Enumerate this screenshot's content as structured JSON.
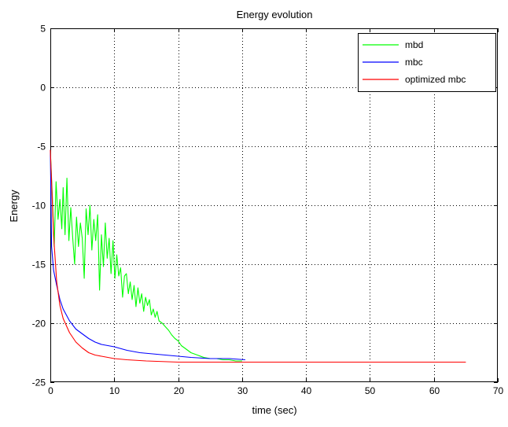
{
  "chart_data": {
    "type": "line",
    "title": "Energy evolution",
    "xlabel": "time (sec)",
    "ylabel": "Energy",
    "xlim": [
      0,
      70
    ],
    "ylim": [
      -25,
      5
    ],
    "x_ticks": [
      0,
      10,
      20,
      30,
      40,
      50,
      60,
      70
    ],
    "y_ticks": [
      5,
      0,
      -5,
      -10,
      -15,
      -20,
      -25
    ],
    "grid": true,
    "legend_position": "top-right",
    "series": [
      {
        "name": "mbd",
        "color": "#00ff00",
        "points": [
          [
            0,
            -5.3
          ],
          [
            0.3,
            -9.0
          ],
          [
            0.6,
            -13.5
          ],
          [
            0.9,
            -8.0
          ],
          [
            1.2,
            -11.2
          ],
          [
            1.5,
            -9.5
          ],
          [
            1.8,
            -12.0
          ],
          [
            2.0,
            -8.5
          ],
          [
            2.3,
            -12.5
          ],
          [
            2.6,
            -7.7
          ],
          [
            2.9,
            -13.0
          ],
          [
            3.2,
            -10.2
          ],
          [
            3.5,
            -12.8
          ],
          [
            3.8,
            -15.0
          ],
          [
            4.1,
            -11.0
          ],
          [
            4.4,
            -13.5
          ],
          [
            4.7,
            -11.5
          ],
          [
            5.0,
            -12.8
          ],
          [
            5.3,
            -16.2
          ],
          [
            5.6,
            -10.3
          ],
          [
            5.9,
            -12.5
          ],
          [
            6.2,
            -10.0
          ],
          [
            6.5,
            -13.8
          ],
          [
            6.8,
            -11.2
          ],
          [
            7.1,
            -13.0
          ],
          [
            7.4,
            -10.8
          ],
          [
            7.7,
            -17.2
          ],
          [
            8.0,
            -12.5
          ],
          [
            8.3,
            -15.2
          ],
          [
            8.6,
            -11.5
          ],
          [
            8.9,
            -14.5
          ],
          [
            9.2,
            -12.8
          ],
          [
            9.5,
            -15.8
          ],
          [
            9.8,
            -13.0
          ],
          [
            10.1,
            -16.2
          ],
          [
            10.4,
            -14.2
          ],
          [
            10.7,
            -16.0
          ],
          [
            11.0,
            -15.3
          ],
          [
            11.3,
            -17.8
          ],
          [
            11.6,
            -16.0
          ],
          [
            11.9,
            -15.8
          ],
          [
            12.2,
            -17.5
          ],
          [
            12.5,
            -16.5
          ],
          [
            12.8,
            -18.0
          ],
          [
            13.1,
            -16.8
          ],
          [
            13.4,
            -18.6
          ],
          [
            13.7,
            -17.0
          ],
          [
            14.0,
            -18.3
          ],
          [
            14.3,
            -17.5
          ],
          [
            14.6,
            -19.0
          ],
          [
            14.9,
            -17.8
          ],
          [
            15.2,
            -18.5
          ],
          [
            15.5,
            -18.0
          ],
          [
            15.8,
            -19.3
          ],
          [
            16.1,
            -18.8
          ],
          [
            16.4,
            -19.5
          ],
          [
            16.7,
            -19.0
          ],
          [
            17.0,
            -19.8
          ],
          [
            17.5,
            -20.0
          ],
          [
            18.0,
            -20.3
          ],
          [
            18.5,
            -20.6
          ],
          [
            19.0,
            -21.0
          ],
          [
            19.5,
            -21.3
          ],
          [
            20.0,
            -21.5
          ],
          [
            20.5,
            -21.9
          ],
          [
            21.0,
            -22.1
          ],
          [
            21.5,
            -22.3
          ],
          [
            22.0,
            -22.5
          ],
          [
            22.5,
            -22.6
          ],
          [
            23.0,
            -22.7
          ],
          [
            24.0,
            -22.9
          ],
          [
            25.0,
            -23.0
          ],
          [
            26.0,
            -23.0
          ],
          [
            27.0,
            -23.1
          ],
          [
            28.0,
            -23.1
          ],
          [
            29.0,
            -23.2
          ],
          [
            30.0,
            -23.2
          ]
        ]
      },
      {
        "name": "mbc",
        "color": "#0000ff",
        "points": [
          [
            0,
            -5.3
          ],
          [
            0.2,
            -13.5
          ],
          [
            0.5,
            -15.5
          ],
          [
            1.0,
            -16.8
          ],
          [
            1.5,
            -18.0
          ],
          [
            2.0,
            -18.8
          ],
          [
            3.0,
            -19.8
          ],
          [
            4.0,
            -20.5
          ],
          [
            5.0,
            -20.9
          ],
          [
            6.0,
            -21.3
          ],
          [
            7.0,
            -21.6
          ],
          [
            8.0,
            -21.8
          ],
          [
            9.0,
            -21.9
          ],
          [
            10.0,
            -22.0
          ],
          [
            12.0,
            -22.3
          ],
          [
            14.0,
            -22.5
          ],
          [
            16.0,
            -22.6
          ],
          [
            18.0,
            -22.7
          ],
          [
            20.0,
            -22.8
          ],
          [
            22.0,
            -22.9
          ],
          [
            25.0,
            -23.0
          ],
          [
            28.0,
            -23.0
          ],
          [
            30.5,
            -23.1
          ]
        ]
      },
      {
        "name": "optimized mbc",
        "color": "#ff0000",
        "points": [
          [
            0,
            -5.3
          ],
          [
            0.2,
            -8.0
          ],
          [
            0.5,
            -12.5
          ],
          [
            1.0,
            -16.5
          ],
          [
            1.5,
            -18.5
          ],
          [
            2.0,
            -19.6
          ],
          [
            3.0,
            -20.8
          ],
          [
            4.0,
            -21.6
          ],
          [
            5.0,
            -22.1
          ],
          [
            6.0,
            -22.5
          ],
          [
            7.0,
            -22.7
          ],
          [
            8.0,
            -22.8
          ],
          [
            10.0,
            -23.0
          ],
          [
            12.0,
            -23.1
          ],
          [
            15.0,
            -23.2
          ],
          [
            20.0,
            -23.3
          ],
          [
            30.0,
            -23.3
          ],
          [
            40.0,
            -23.3
          ],
          [
            50.0,
            -23.3
          ],
          [
            60.0,
            -23.3
          ],
          [
            65.0,
            -23.3
          ]
        ]
      }
    ]
  }
}
